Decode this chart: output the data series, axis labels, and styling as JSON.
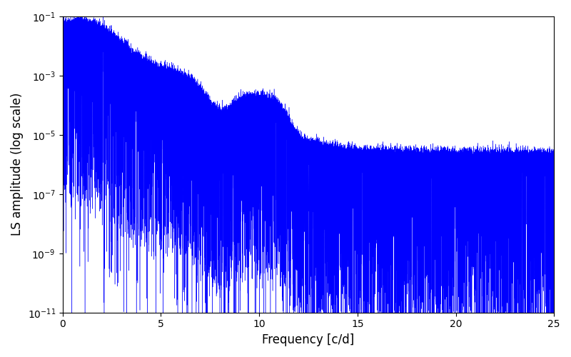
{
  "title": "",
  "xlabel": "Frequency [c/d]",
  "ylabel": "LS amplitude (log scale)",
  "line_color": "#0000ff",
  "line_width": 0.3,
  "xlim": [
    0,
    25
  ],
  "ylim": [
    1e-11,
    0.1
  ],
  "background_color": "#ffffff",
  "figsize": [
    8.0,
    5.0
  ],
  "dpi": 100,
  "n_points": 100000,
  "freq_min": 0.0,
  "freq_max": 25.0,
  "seed": 123
}
